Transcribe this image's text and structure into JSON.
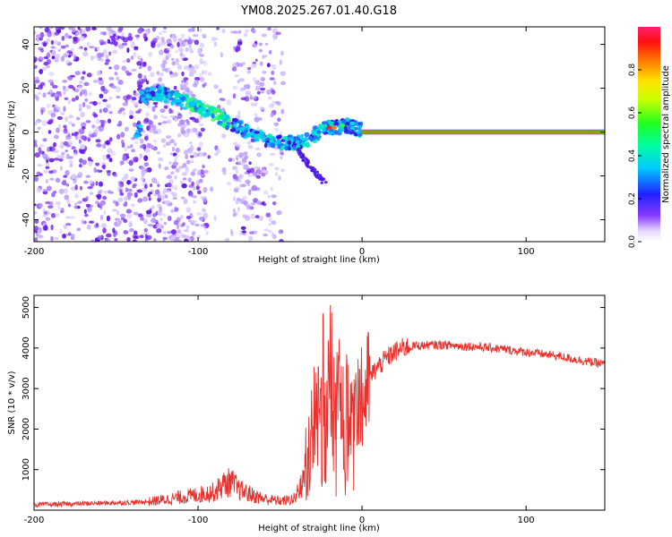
{
  "title": "YM08.2025.267.01.40.G18",
  "chart_data": [
    {
      "id": "spectrogram",
      "type": "heatmap",
      "title": "",
      "xlabel": "Height of straight line (km)",
      "ylabel": "Frequency (Hz)",
      "xlim": [
        -200,
        148
      ],
      "ylim": [
        -50,
        48
      ],
      "xticks": [
        -200,
        -100,
        0,
        100
      ],
      "yticks": [
        -40,
        -20,
        0,
        20,
        40
      ],
      "xtick_labels": [
        "-200",
        "-100",
        "0",
        "100"
      ],
      "ytick_labels": [
        "-40",
        "-20",
        "0",
        "20",
        "40"
      ],
      "colorbar": {
        "label": "Normalized spectral amplitude",
        "range": [
          0,
          1
        ],
        "ticks": [
          0.0,
          0.2,
          0.4,
          0.6,
          0.8
        ],
        "tick_labels": [
          "0.0",
          "0.2",
          "0.4",
          "0.6",
          "0.8"
        ]
      },
      "ridge_track": [
        {
          "x": -135,
          "y": 16
        },
        {
          "x": -125,
          "y": 18
        },
        {
          "x": -115,
          "y": 16
        },
        {
          "x": -105,
          "y": 13
        },
        {
          "x": -95,
          "y": 10
        },
        {
          "x": -85,
          "y": 6
        },
        {
          "x": -75,
          "y": 2
        },
        {
          "x": -65,
          "y": -2
        },
        {
          "x": -55,
          "y": -4
        },
        {
          "x": -45,
          "y": -5
        },
        {
          "x": -35,
          "y": -4
        },
        {
          "x": -30,
          "y": -2
        },
        {
          "x": -25,
          "y": 1
        },
        {
          "x": -20,
          "y": 2
        },
        {
          "x": -15,
          "y": 2
        },
        {
          "x": -10,
          "y": 3
        },
        {
          "x": -5,
          "y": 2
        },
        {
          "x": 0,
          "y": 1
        }
      ],
      "carrier_line": {
        "x_start": 0,
        "x_end": 148,
        "y": 0,
        "amplitude": 1.0
      }
    },
    {
      "id": "snr",
      "type": "line",
      "title": "",
      "xlabel": "Height of straight line (km)",
      "ylabel": "SNR (10 * v/v)",
      "xlim": [
        -200,
        148
      ],
      "ylim": [
        0,
        5300
      ],
      "xticks": [
        -200,
        -100,
        0,
        100
      ],
      "yticks": [
        1000,
        2000,
        3000,
        4000,
        5000
      ],
      "xtick_labels": [
        "-200",
        "-100",
        "0",
        "100"
      ],
      "ytick_labels": [
        "1000",
        "2000",
        "3000",
        "4000",
        "5000"
      ],
      "color": "#e8302c",
      "series": [
        {
          "name": "SNR",
          "x": [
            -200,
            -180,
            -160,
            -140,
            -130,
            -120,
            -110,
            -100,
            -90,
            -85,
            -80,
            -75,
            -70,
            -65,
            -60,
            -55,
            -50,
            -45,
            -40,
            -36,
            -33,
            -30,
            -27,
            -24,
            -22,
            -20,
            -18,
            -16,
            -14,
            -12,
            -10,
            -8,
            -6,
            -4,
            -2,
            0,
            3,
            6,
            10,
            15,
            20,
            25,
            30,
            40,
            50,
            60,
            70,
            80,
            90,
            100,
            110,
            120,
            130,
            140,
            148
          ],
          "y": [
            130,
            150,
            170,
            190,
            210,
            260,
            320,
            380,
            450,
            620,
            700,
            500,
            420,
            340,
            280,
            250,
            230,
            240,
            300,
            700,
            1500,
            2200,
            2700,
            2400,
            2800,
            3000,
            2500,
            2600,
            3100,
            2200,
            2400,
            2600,
            2800,
            3000,
            2900,
            2600,
            3050,
            3350,
            3550,
            3750,
            3900,
            4000,
            4050,
            4070,
            4080,
            4050,
            4030,
            4000,
            3950,
            3900,
            3850,
            3800,
            3720,
            3650,
            3600
          ]
        }
      ]
    }
  ]
}
